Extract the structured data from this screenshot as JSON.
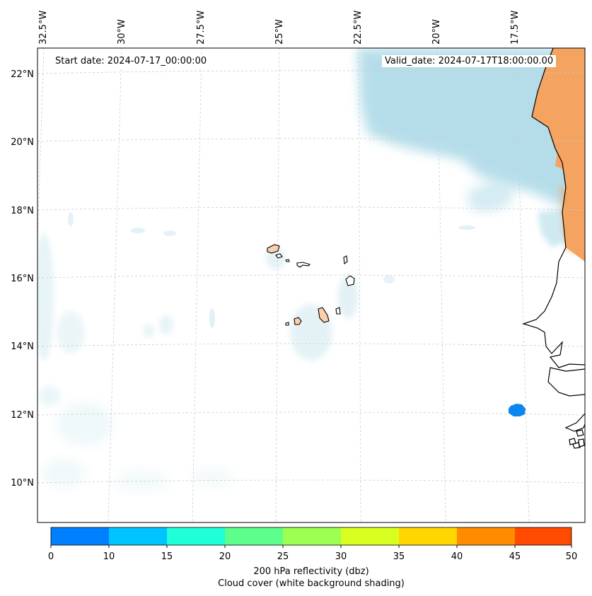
{
  "header": {
    "start_date": "Start date: 2024-07-17_00:00:00",
    "valid_date": "Valid_date: 2024-07-17T18:00:00.00"
  },
  "axes": {
    "longitude_labels": [
      "32.5°W",
      "30°W",
      "27.5°W",
      "25°W",
      "22.5°W",
      "20°W",
      "17.5°W"
    ],
    "latitude_labels": [
      "22°N",
      "20°N",
      "18°N",
      "16°N",
      "14°N",
      "12°N",
      "10°N"
    ]
  },
  "colorbar": {
    "ticks": [
      "0",
      "10",
      "15",
      "20",
      "25",
      "30",
      "35",
      "40",
      "45",
      "50"
    ],
    "colors": [
      "#0080ff",
      "#00c4ff",
      "#1fffd8",
      "#5cff8c",
      "#9cff52",
      "#d8ff1f",
      "#ffd700",
      "#ff8c00",
      "#ff4a00"
    ],
    "label_line1": "200 hPa reflectivity (dbz)",
    "label_line2": "Cloud cover (white background shading)"
  },
  "colors": {
    "cloud": "#a9d8e6",
    "land_high": "#f4a460",
    "island_fill": "#fcd0a8",
    "reflectivity_cell": "#0a86f0"
  }
}
